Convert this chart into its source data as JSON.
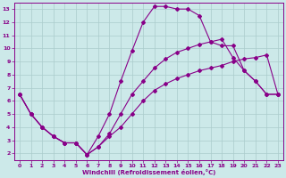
{
  "xlabel": "Windchill (Refroidissement éolien,°C)",
  "xlim": [
    -0.5,
    23.5
  ],
  "ylim": [
    1.5,
    13.5
  ],
  "xticks": [
    0,
    1,
    2,
    3,
    4,
    5,
    6,
    7,
    8,
    9,
    10,
    11,
    12,
    13,
    14,
    15,
    16,
    17,
    18,
    19,
    20,
    21,
    22,
    23
  ],
  "yticks": [
    2,
    3,
    4,
    5,
    6,
    7,
    8,
    9,
    10,
    11,
    12,
    13
  ],
  "bg_color": "#cce9e9",
  "line_color": "#880088",
  "grid_color": "#aacccc",
  "line1_x": [
    0,
    1,
    2,
    3,
    4,
    5,
    6,
    7,
    8,
    9,
    10,
    11,
    12,
    13,
    14,
    15,
    16,
    17,
    18,
    19,
    20,
    21,
    22,
    23
  ],
  "line1_y": [
    6.5,
    5.0,
    4.0,
    3.3,
    2.8,
    2.8,
    1.9,
    2.5,
    3.3,
    4.0,
    5.0,
    6.0,
    6.8,
    7.3,
    7.7,
    8.0,
    8.3,
    8.5,
    8.7,
    9.0,
    9.2,
    9.3,
    9.5,
    6.5
  ],
  "line2_x": [
    0,
    1,
    2,
    3,
    4,
    5,
    6,
    7,
    8,
    9,
    10,
    11,
    12,
    13,
    14,
    15,
    16,
    17,
    18,
    19,
    20,
    21,
    22,
    23
  ],
  "line2_y": [
    6.5,
    5.0,
    4.0,
    3.3,
    2.8,
    2.8,
    1.9,
    2.5,
    3.5,
    5.0,
    6.5,
    7.5,
    8.5,
    9.2,
    9.7,
    10.0,
    10.3,
    10.5,
    10.7,
    9.3,
    8.3,
    7.5,
    6.5,
    6.5
  ],
  "line3_x": [
    0,
    1,
    2,
    3,
    4,
    5,
    6,
    7,
    8,
    9,
    10,
    11,
    12,
    13,
    14,
    15,
    16,
    17,
    18,
    19,
    20,
    21,
    22,
    23
  ],
  "line3_y": [
    6.5,
    5.0,
    4.0,
    3.3,
    2.8,
    2.8,
    1.9,
    3.3,
    5.0,
    7.5,
    9.8,
    12.0,
    13.2,
    13.2,
    13.0,
    13.0,
    12.5,
    10.5,
    10.2,
    10.2,
    8.3,
    7.5,
    6.5,
    6.5
  ]
}
